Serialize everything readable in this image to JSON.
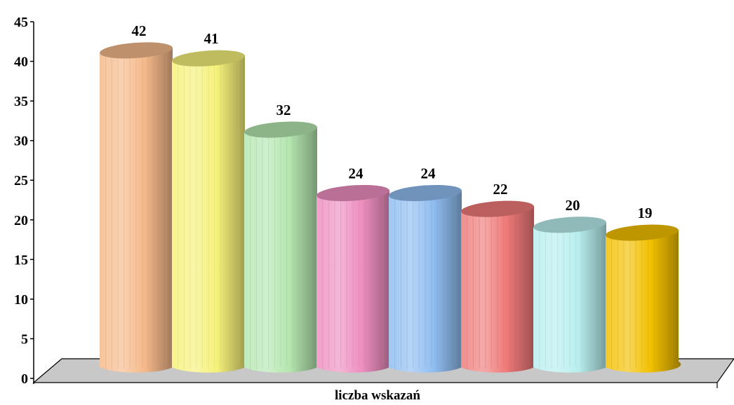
{
  "chart_data": {
    "type": "bar",
    "style": "3d-cylinder",
    "categories": [
      "",
      "",
      "",
      "",
      "",
      "",
      "",
      ""
    ],
    "values": [
      42,
      41,
      32,
      24,
      24,
      22,
      20,
      19
    ],
    "xlabel": "liczba wskazań",
    "ylabel": "",
    "ylim": [
      0,
      45
    ],
    "yticks": [
      "0",
      "5",
      "10",
      "15",
      "20",
      "25",
      "30",
      "35",
      "40",
      "45"
    ],
    "grid": false,
    "legend": "none",
    "colors": [
      "#F5B98A",
      "#F5F17A",
      "#B5E6B0",
      "#EE8FC0",
      "#8FBDF0",
      "#F07A7A",
      "#B8EEEE",
      "#F2C000"
    ],
    "floor_color": "#C8C8C8"
  }
}
